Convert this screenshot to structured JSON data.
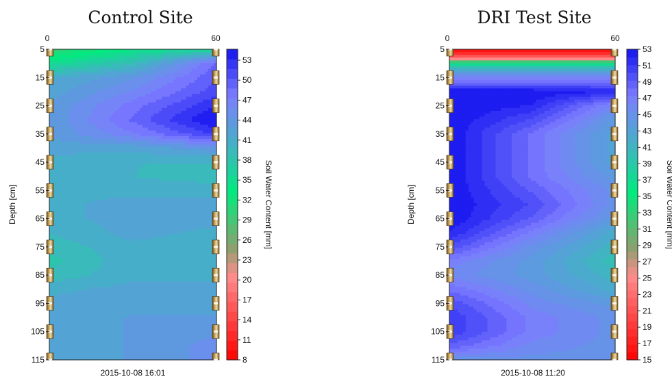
{
  "chart_data": [
    {
      "type": "heatmap",
      "title": "Control Site",
      "x_ticks": [
        "0",
        "60"
      ],
      "xlim": [
        0,
        60
      ],
      "ylabel": "Depth [cm]",
      "y_ticks": [
        "5",
        "15",
        "25",
        "35",
        "45",
        "55",
        "65",
        "75",
        "85",
        "95",
        "105",
        "115"
      ],
      "ylim": [
        5,
        115
      ],
      "timestamp": "2015-10-08 16:01",
      "colorbar": {
        "label": "Soil Water Content [mm]",
        "ticks": [
          "8",
          "11",
          "14",
          "17",
          "20",
          "23",
          "26",
          "29",
          "32",
          "35",
          "38",
          "41",
          "44",
          "47",
          "50",
          "53"
        ],
        "range": [
          8,
          54.5
        ]
      },
      "field_grid": {
        "x": [
          0,
          30,
          60
        ],
        "depths": [
          5,
          10,
          15,
          20,
          25,
          30,
          35,
          40,
          45,
          50,
          55,
          60,
          65,
          70,
          75,
          80,
          85,
          90,
          95,
          100,
          105,
          110,
          115
        ],
        "values": [
          [
            30,
            34,
            36
          ],
          [
            35,
            39,
            49
          ],
          [
            41,
            44,
            50
          ],
          [
            42,
            46,
            51
          ],
          [
            43,
            48,
            53
          ],
          [
            43,
            49,
            55
          ],
          [
            43,
            47,
            52
          ],
          [
            42,
            42,
            44
          ],
          [
            41,
            40,
            40
          ],
          [
            41,
            40,
            39
          ],
          [
            41,
            41,
            41
          ],
          [
            41,
            42,
            42
          ],
          [
            41,
            42,
            42
          ],
          [
            40,
            42,
            41
          ],
          [
            39,
            41,
            40
          ],
          [
            38,
            41,
            40
          ],
          [
            39,
            41,
            41
          ],
          [
            41,
            42,
            42
          ],
          [
            42,
            42,
            42
          ],
          [
            42,
            43,
            43
          ],
          [
            42,
            43,
            44
          ],
          [
            42,
            43,
            45
          ],
          [
            42,
            43,
            45
          ]
        ]
      }
    },
    {
      "type": "heatmap",
      "title": "DRI Test Site",
      "x_ticks": [
        "0",
        "60"
      ],
      "xlim": [
        0,
        60
      ],
      "ylabel": "Depth [cm]",
      "y_ticks": [
        "5",
        "15",
        "25",
        "35",
        "45",
        "55",
        "65",
        "75",
        "85",
        "95",
        "105",
        "115"
      ],
      "ylim": [
        5,
        115
      ],
      "timestamp": "2015-10-08 11:20",
      "colorbar": {
        "label": "Soil Water Content [mm]",
        "ticks": [
          "15",
          "17",
          "19",
          "21",
          "23",
          "25",
          "27",
          "29",
          "31",
          "33",
          "35",
          "37",
          "39",
          "41",
          "43",
          "45",
          "47",
          "49",
          "51",
          "53"
        ],
        "range": [
          15,
          53
        ]
      },
      "field_grid": {
        "x": [
          0,
          30,
          60
        ],
        "depths": [
          5,
          8,
          10,
          13,
          16,
          20,
          25,
          30,
          35,
          40,
          45,
          50,
          55,
          60,
          65,
          70,
          75,
          80,
          85,
          90,
          95,
          100,
          105,
          110,
          115
        ],
        "values": [
          [
            15,
            15,
            15
          ],
          [
            22,
            22,
            22
          ],
          [
            36,
            36,
            36
          ],
          [
            44,
            44,
            44
          ],
          [
            47,
            47,
            47
          ],
          [
            53,
            53,
            52
          ],
          [
            53,
            52,
            46
          ],
          [
            53,
            50,
            44
          ],
          [
            53,
            48,
            43
          ],
          [
            53,
            48,
            43
          ],
          [
            53,
            48,
            43
          ],
          [
            53,
            48,
            44
          ],
          [
            53,
            49,
            45
          ],
          [
            53,
            50,
            45
          ],
          [
            53,
            49,
            44
          ],
          [
            52,
            47,
            42
          ],
          [
            50,
            45,
            41
          ],
          [
            47,
            44,
            40
          ],
          [
            46,
            44,
            41
          ],
          [
            48,
            45,
            42
          ],
          [
            50,
            46,
            44
          ],
          [
            51,
            47,
            45
          ],
          [
            51,
            47,
            45
          ],
          [
            49,
            46,
            45
          ],
          [
            45,
            45,
            45
          ]
        ]
      }
    }
  ]
}
